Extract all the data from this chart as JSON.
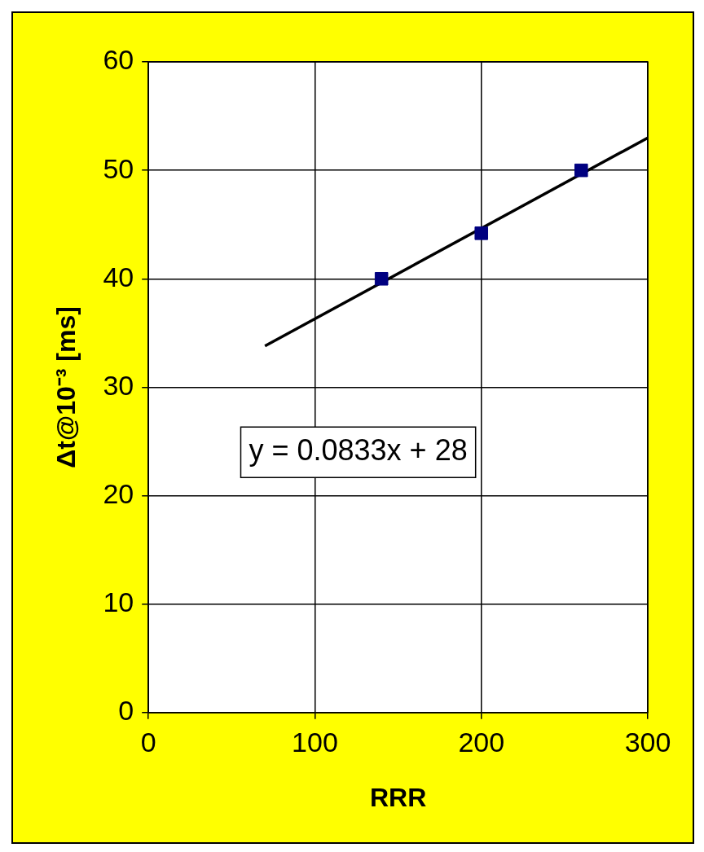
{
  "chart_data": {
    "type": "scatter",
    "xlabel": "RRR",
    "ylabel": "Δt@10⁻³ [ms]",
    "xlim": [
      0,
      300
    ],
    "xticks": [
      0,
      100,
      200,
      300
    ],
    "ylim": [
      0,
      60
    ],
    "yticks": [
      0,
      10,
      20,
      30,
      40,
      50,
      60
    ],
    "grid": true,
    "legend": false,
    "series": [
      {
        "type": "scatter",
        "color": "#000080",
        "marker": "square",
        "x": [
          140,
          200,
          260
        ],
        "values": [
          40,
          44.2,
          50
        ]
      },
      {
        "type": "line",
        "color": "#000000",
        "marker": "none",
        "line_style": "solid",
        "x": [
          70,
          300
        ],
        "values": [
          33.8,
          53
        ]
      }
    ],
    "annotations": [
      "y = 0.0833x + 28"
    ]
  }
}
